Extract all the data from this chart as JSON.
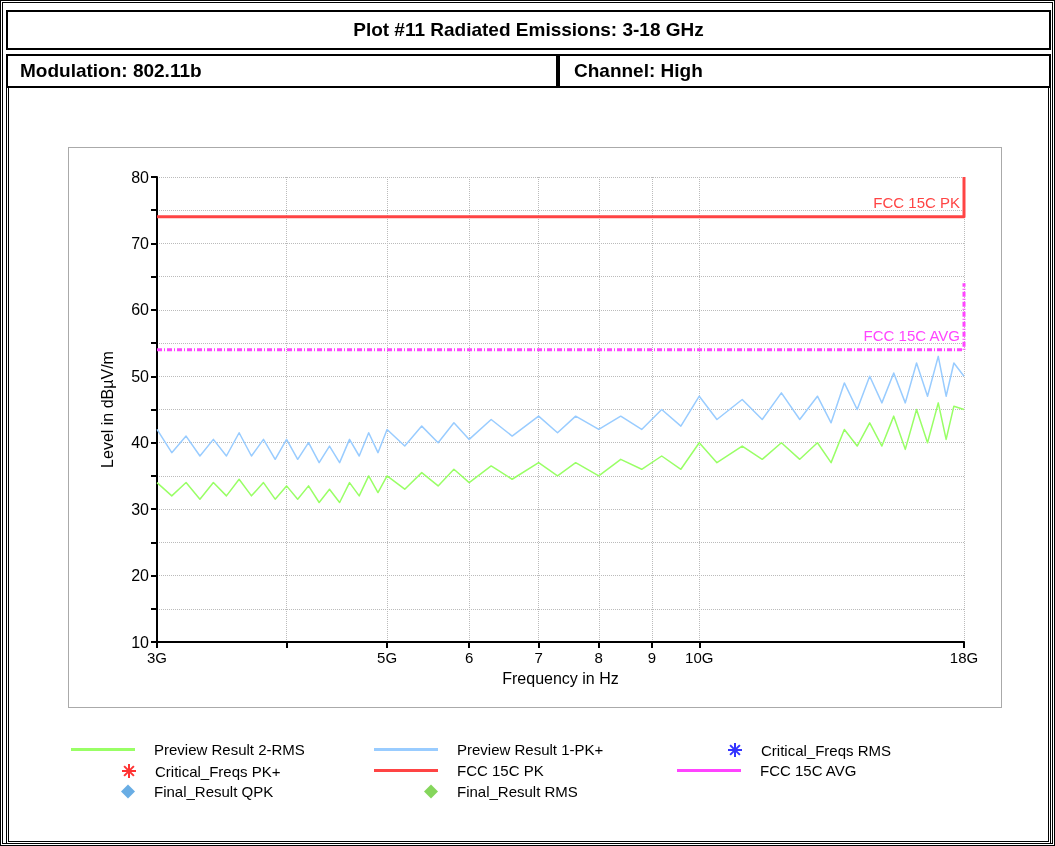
{
  "chart_data": {
    "type": "line",
    "title": "Plot #11 Radiated Emissions: 3-18 GHz",
    "annotations": [
      "Modulation: 802.11b",
      "Channel: High"
    ],
    "xlabel": "Frequency in Hz",
    "ylabel": "Level in dBµV/m",
    "log": "x",
    "grid": true,
    "legend": "bottom",
    "xlim": [
      3,
      18
    ],
    "xticks": [
      {
        "value": 3,
        "label": "3G"
      },
      {
        "value": 4,
        "label": null
      },
      {
        "value": 5,
        "label": "5G"
      },
      6,
      7,
      8,
      9,
      {
        "value": 10,
        "label": "10G"
      },
      {
        "value": 18,
        "label": "18G"
      }
    ],
    "ylim": [
      10,
      80
    ],
    "yticks": [
      10,
      {
        "value": 15,
        "label": null
      },
      20,
      {
        "value": 25,
        "label": null
      },
      30,
      {
        "value": 35,
        "label": null
      },
      40,
      {
        "value": 45,
        "label": null
      },
      50,
      {
        "value": 55,
        "label": null
      },
      60,
      {
        "value": 65,
        "label": null
      },
      70,
      {
        "value": 75,
        "label": null
      },
      80
    ],
    "series": [
      {
        "name": "Preview Result 2-RMS",
        "type": "line",
        "color": "#99ff66",
        "x": [
          3.0,
          3.1,
          3.2,
          3.3,
          3.4,
          3.5,
          3.6,
          3.7,
          3.8,
          3.9,
          4.0,
          4.1,
          4.2,
          4.3,
          4.4,
          4.5,
          4.6,
          4.7,
          4.8,
          4.9,
          5.0,
          5.2,
          5.4,
          5.6,
          5.8,
          6.0,
          6.3,
          6.6,
          7.0,
          7.3,
          7.6,
          8.0,
          8.4,
          8.8,
          9.2,
          9.6,
          10.0,
          10.4,
          11.0,
          11.5,
          12.0,
          12.5,
          13.0,
          13.4,
          13.8,
          14.2,
          14.6,
          15.0,
          15.4,
          15.8,
          16.2,
          16.6,
          17.0,
          17.3,
          17.6,
          18.0
        ],
        "values": [
          34,
          32,
          34,
          31.5,
          34,
          32,
          34.5,
          32,
          34,
          31.5,
          33.5,
          31.5,
          33.5,
          31,
          33,
          31,
          34,
          32,
          35,
          32.5,
          35,
          33,
          35.5,
          33.5,
          36,
          34,
          36.5,
          34.5,
          37,
          35,
          37,
          35,
          37.5,
          36,
          38,
          36,
          40,
          37,
          39.5,
          37.5,
          40,
          37.5,
          40,
          37,
          42,
          39.5,
          43,
          39.5,
          44,
          39,
          45,
          40,
          46,
          40.5,
          45.5,
          45
        ]
      },
      {
        "name": "Preview Result 1-PK+",
        "type": "line",
        "color": "#99ccff",
        "x": [
          3.0,
          3.1,
          3.2,
          3.3,
          3.4,
          3.5,
          3.6,
          3.7,
          3.8,
          3.9,
          4.0,
          4.1,
          4.2,
          4.3,
          4.4,
          4.5,
          4.6,
          4.7,
          4.8,
          4.9,
          5.0,
          5.2,
          5.4,
          5.6,
          5.8,
          6.0,
          6.3,
          6.6,
          7.0,
          7.3,
          7.6,
          8.0,
          8.4,
          8.8,
          9.2,
          9.6,
          10.0,
          10.4,
          11.0,
          11.5,
          12.0,
          12.5,
          13.0,
          13.4,
          13.8,
          14.2,
          14.6,
          15.0,
          15.4,
          15.8,
          16.2,
          16.6,
          17.0,
          17.3,
          17.6,
          18.0
        ],
        "values": [
          42,
          38.5,
          41,
          38,
          40.5,
          38,
          41.5,
          38,
          40.5,
          37.5,
          40.5,
          37.5,
          40,
          37,
          39.5,
          37,
          40.5,
          38,
          41.5,
          38.5,
          42,
          39.5,
          42.5,
          40,
          43,
          40.5,
          43.5,
          41,
          44,
          41.5,
          44,
          42,
          44,
          42,
          45,
          42.5,
          47,
          43.5,
          46.5,
          43.5,
          47.5,
          43.5,
          47,
          43,
          49,
          45,
          50,
          46,
          50.5,
          46,
          52,
          47,
          53,
          47,
          52,
          50
        ]
      },
      {
        "name": "Critical_Freqs RMS",
        "type": "scatter",
        "color": "#0000ff",
        "marker": "star"
      },
      {
        "name": "Critical_Freqs PK+",
        "type": "scatter",
        "color": "#ff0000",
        "marker": "star"
      },
      {
        "name": "FCC 15C PK",
        "type": "line",
        "color": "#ff4444",
        "line_style": "solid",
        "x": [
          3,
          18,
          18
        ],
        "values": [
          74,
          74,
          80
        ]
      },
      {
        "name": "FCC 15C AVG",
        "type": "line",
        "color": "#ff44ff",
        "line_style": "dashed",
        "x": [
          3,
          18,
          18
        ],
        "values": [
          54,
          54,
          64
        ]
      },
      {
        "name": "Final_Result QPK",
        "type": "scatter",
        "color": "#4499dd",
        "marker": "diamond"
      },
      {
        "name": "Final_Result RMS",
        "type": "scatter",
        "color": "#66cc33",
        "marker": "diamond"
      }
    ]
  }
}
